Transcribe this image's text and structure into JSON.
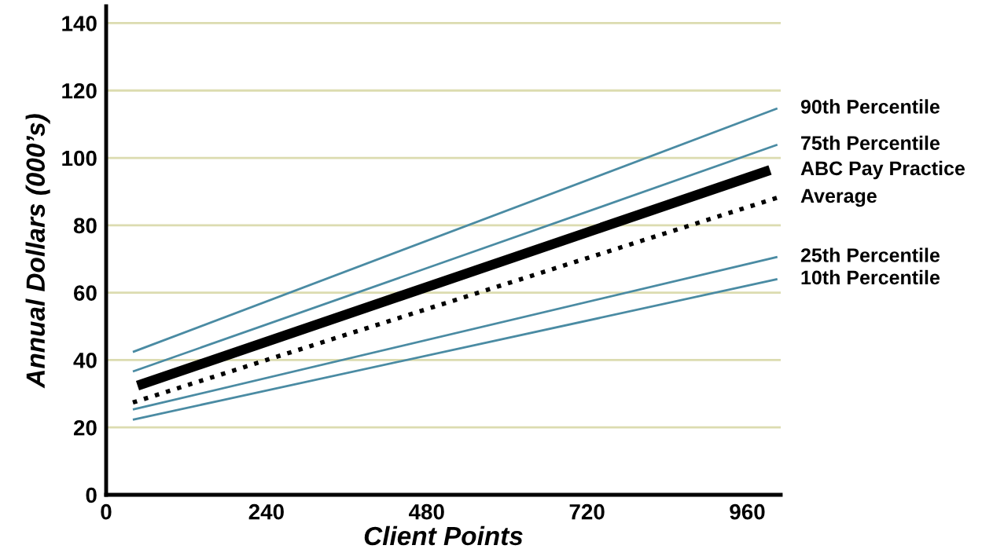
{
  "chart_data": {
    "type": "line",
    "xlabel": "Client Points",
    "ylabel": "Annual Dollars (000’s)",
    "xlim": [
      0,
      1010
    ],
    "ylim": [
      0,
      145
    ],
    "xticks": [
      0,
      240,
      480,
      720,
      960
    ],
    "yticks": [
      0,
      20,
      40,
      60,
      80,
      100,
      120,
      140
    ],
    "grid": "y",
    "legend": false,
    "marker": "none",
    "series": [
      {
        "name": "90th Percentile",
        "color": "#4a8ba3",
        "x": [
          40,
          1005
        ],
        "values": [
          42.4,
          114.7
        ],
        "line_style": "solid"
      },
      {
        "name": "75th Percentile",
        "color": "#4a8ba3",
        "x": [
          40,
          1005
        ],
        "values": [
          36.6,
          103.9
        ],
        "line_style": "solid"
      },
      {
        "name": "ABC Pay Practice",
        "color": "#000000",
        "x": [
          47,
          994
        ],
        "values": [
          32.4,
          96.4
        ],
        "line_style": "solid"
      },
      {
        "name": "Average",
        "color": "#000000",
        "x": [
          40,
          1005
        ],
        "values": [
          27.4,
          88.2
        ],
        "line_style": "dotted"
      },
      {
        "name": "25th Percentile",
        "color": "#4a8ba3",
        "x": [
          40,
          1005
        ],
        "values": [
          25.3,
          70.6
        ],
        "line_style": "solid"
      },
      {
        "name": "10th Percentile",
        "color": "#4a8ba3",
        "x": [
          40,
          1005
        ],
        "values": [
          22.3,
          64.0
        ],
        "line_style": "solid"
      }
    ]
  }
}
